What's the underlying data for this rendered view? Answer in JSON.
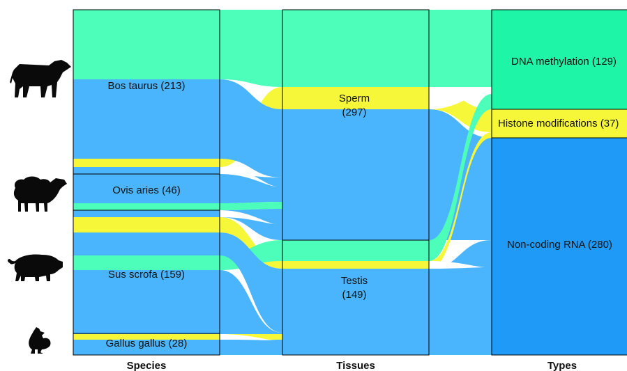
{
  "colors": {
    "methylation": "#4dfdba",
    "histone": "#f7f73a",
    "ncrna": "#4ab4fc",
    "ncrna_dark": "#1f9bf7",
    "methylation_dark": "#1ff5a6",
    "border": "#000000",
    "animal": "#0a0a0a"
  },
  "column_titles": {
    "species": "Species",
    "tissues": "Tissues",
    "types": "Types"
  },
  "icons": [
    "cow-icon",
    "sheep-icon",
    "pig-icon",
    "chicken-icon"
  ],
  "chart_data": {
    "type": "sankey",
    "columns": [
      "Species",
      "Tissues",
      "Types"
    ],
    "nodes": {
      "species": [
        {
          "label": "Bos taurus (213)",
          "value": 213
        },
        {
          "label": "Ovis aries (46)",
          "value": 46
        },
        {
          "label": "Sus scrofa (159)",
          "value": 159
        },
        {
          "label": "Gallus gallus (28)",
          "value": 28
        }
      ],
      "tissues": [
        {
          "label_line1": "Sperm",
          "label_line2": "(297)",
          "value": 297
        },
        {
          "label_line1": "Testis",
          "label_line2": "(149)",
          "value": 149
        }
      ],
      "types": [
        {
          "label": "DNA methylation (129)",
          "value": 129
        },
        {
          "label": "Histone modifications (37)",
          "value": 37
        },
        {
          "label": "Non-coding RNA (280)",
          "value": 280
        }
      ]
    }
  }
}
